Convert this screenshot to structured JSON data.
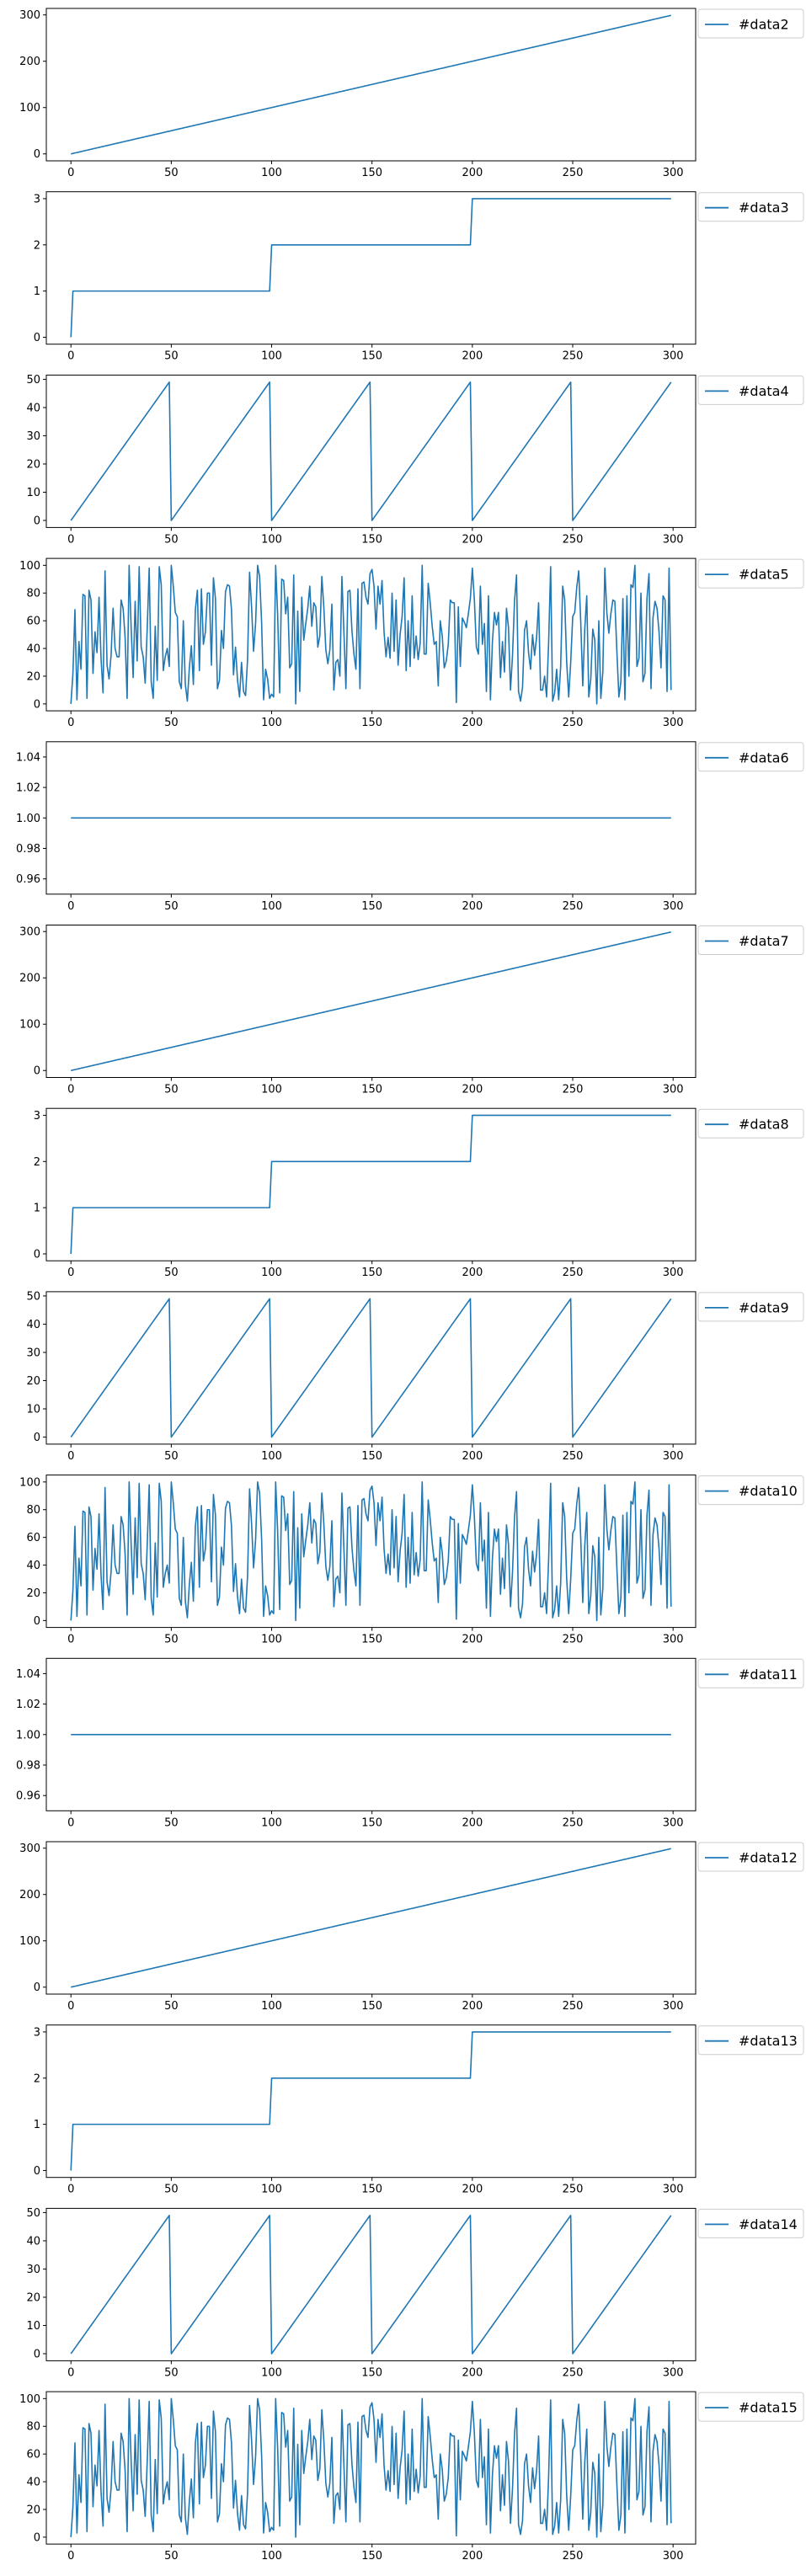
{
  "chart_data": [
    {
      "type": "line",
      "pattern": "linear",
      "series": [
        {
          "name": "#data2"
        }
      ],
      "xlim": [
        0,
        300
      ],
      "ylim": [
        0,
        300
      ],
      "xticks": [
        0,
        50,
        100,
        150,
        200,
        250,
        300
      ],
      "yticks": [
        0,
        100,
        200,
        300
      ]
    },
    {
      "type": "line",
      "pattern": "step",
      "series": [
        {
          "name": "#data3"
        }
      ],
      "xlim": [
        0,
        300
      ],
      "ylim": [
        0,
        3
      ],
      "xticks": [
        0,
        50,
        100,
        150,
        200,
        250,
        300
      ],
      "yticks": [
        0,
        1,
        2,
        3
      ]
    },
    {
      "type": "line",
      "pattern": "sawtooth",
      "series": [
        {
          "name": "#data4"
        }
      ],
      "xlim": [
        0,
        300
      ],
      "ylim": [
        0,
        50
      ],
      "xticks": [
        0,
        50,
        100,
        150,
        200,
        250,
        300
      ],
      "yticks": [
        0,
        10,
        20,
        30,
        40,
        50
      ]
    },
    {
      "type": "line",
      "pattern": "random",
      "series": [
        {
          "name": "#data5"
        }
      ],
      "xlim": [
        0,
        300
      ],
      "ylim": [
        0,
        100
      ],
      "xticks": [
        0,
        50,
        100,
        150,
        200,
        250,
        300
      ],
      "yticks": [
        0,
        20,
        40,
        60,
        80,
        100
      ]
    },
    {
      "type": "line",
      "pattern": "constant",
      "series": [
        {
          "name": "#data6"
        }
      ],
      "xlim": [
        0,
        300
      ],
      "ylim": [
        0.95,
        1.05
      ],
      "xticks": [
        0,
        50,
        100,
        150,
        200,
        250,
        300
      ],
      "yticks": [
        0.96,
        0.98,
        1.0,
        1.02,
        1.04
      ]
    },
    {
      "type": "line",
      "pattern": "linear",
      "series": [
        {
          "name": "#data7"
        }
      ],
      "xlim": [
        0,
        300
      ],
      "ylim": [
        0,
        300
      ],
      "xticks": [
        0,
        50,
        100,
        150,
        200,
        250,
        300
      ],
      "yticks": [
        0,
        100,
        200,
        300
      ]
    },
    {
      "type": "line",
      "pattern": "step",
      "series": [
        {
          "name": "#data8"
        }
      ],
      "xlim": [
        0,
        300
      ],
      "ylim": [
        0,
        3
      ],
      "xticks": [
        0,
        50,
        100,
        150,
        200,
        250,
        300
      ],
      "yticks": [
        0,
        1,
        2,
        3
      ]
    },
    {
      "type": "line",
      "pattern": "sawtooth",
      "series": [
        {
          "name": "#data9"
        }
      ],
      "xlim": [
        0,
        300
      ],
      "ylim": [
        0,
        50
      ],
      "xticks": [
        0,
        50,
        100,
        150,
        200,
        250,
        300
      ],
      "yticks": [
        0,
        10,
        20,
        30,
        40,
        50
      ]
    },
    {
      "type": "line",
      "pattern": "random",
      "series": [
        {
          "name": "#data10"
        }
      ],
      "xlim": [
        0,
        300
      ],
      "ylim": [
        0,
        100
      ],
      "xticks": [
        0,
        50,
        100,
        150,
        200,
        250,
        300
      ],
      "yticks": [
        0,
        20,
        40,
        60,
        80,
        100
      ]
    },
    {
      "type": "line",
      "pattern": "constant",
      "series": [
        {
          "name": "#data11"
        }
      ],
      "xlim": [
        0,
        300
      ],
      "ylim": [
        0.95,
        1.05
      ],
      "xticks": [
        0,
        50,
        100,
        150,
        200,
        250,
        300
      ],
      "yticks": [
        0.96,
        0.98,
        1.0,
        1.02,
        1.04
      ]
    },
    {
      "type": "line",
      "pattern": "linear",
      "series": [
        {
          "name": "#data12"
        }
      ],
      "xlim": [
        0,
        300
      ],
      "ylim": [
        0,
        300
      ],
      "xticks": [
        0,
        50,
        100,
        150,
        200,
        250,
        300
      ],
      "yticks": [
        0,
        100,
        200,
        300
      ]
    },
    {
      "type": "line",
      "pattern": "step",
      "series": [
        {
          "name": "#data13"
        }
      ],
      "xlim": [
        0,
        300
      ],
      "ylim": [
        0,
        3
      ],
      "xticks": [
        0,
        50,
        100,
        150,
        200,
        250,
        300
      ],
      "yticks": [
        0,
        1,
        2,
        3
      ]
    },
    {
      "type": "line",
      "pattern": "sawtooth",
      "series": [
        {
          "name": "#data14"
        }
      ],
      "xlim": [
        0,
        300
      ],
      "ylim": [
        0,
        50
      ],
      "xticks": [
        0,
        50,
        100,
        150,
        200,
        250,
        300
      ],
      "yticks": [
        0,
        10,
        20,
        30,
        40,
        50
      ]
    },
    {
      "type": "line",
      "pattern": "random",
      "series": [
        {
          "name": "#data15"
        }
      ],
      "xlim": [
        0,
        300
      ],
      "ylim": [
        0,
        100
      ],
      "xticks": [
        0,
        50,
        100,
        150,
        200,
        250,
        300
      ],
      "yticks": [
        0,
        20,
        40,
        60,
        80,
        100
      ]
    }
  ],
  "colors": {
    "series": "#1f77b4",
    "axes": "#000000"
  }
}
